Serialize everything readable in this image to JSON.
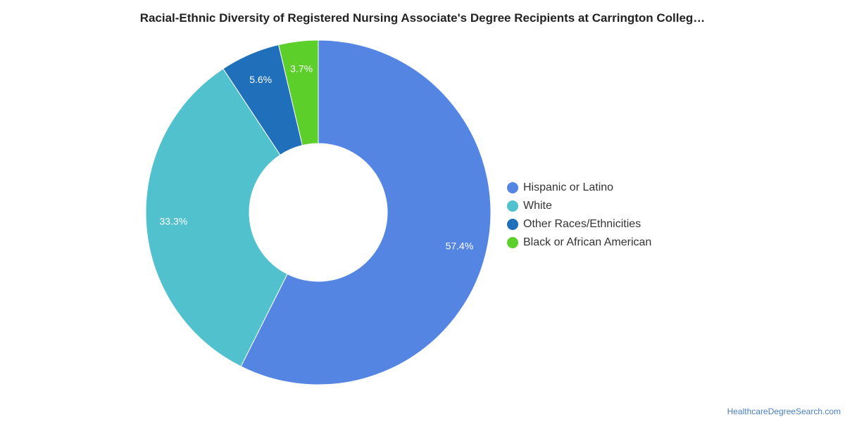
{
  "chart_data": {
    "type": "pie",
    "title": "Racial-Ethnic Diversity of Registered Nursing Associate's Degree Recipients at Carrington Colleg…",
    "slices": [
      {
        "label": "Hispanic or Latino",
        "value": 57.4,
        "display": "57.4%",
        "color": "#5585e3"
      },
      {
        "label": "White",
        "value": 33.3,
        "display": "33.3%",
        "color": "#50c1cd"
      },
      {
        "label": "Other Races/Ethnicities",
        "value": 5.6,
        "display": "5.6%",
        "color": "#1f6fbb"
      },
      {
        "label": "Black or African American",
        "value": 3.7,
        "display": "3.7%",
        "color": "#5ccf2a"
      }
    ],
    "donut": true,
    "legend_position": "right"
  },
  "credit": "HealthcareDegreeSearch.com"
}
